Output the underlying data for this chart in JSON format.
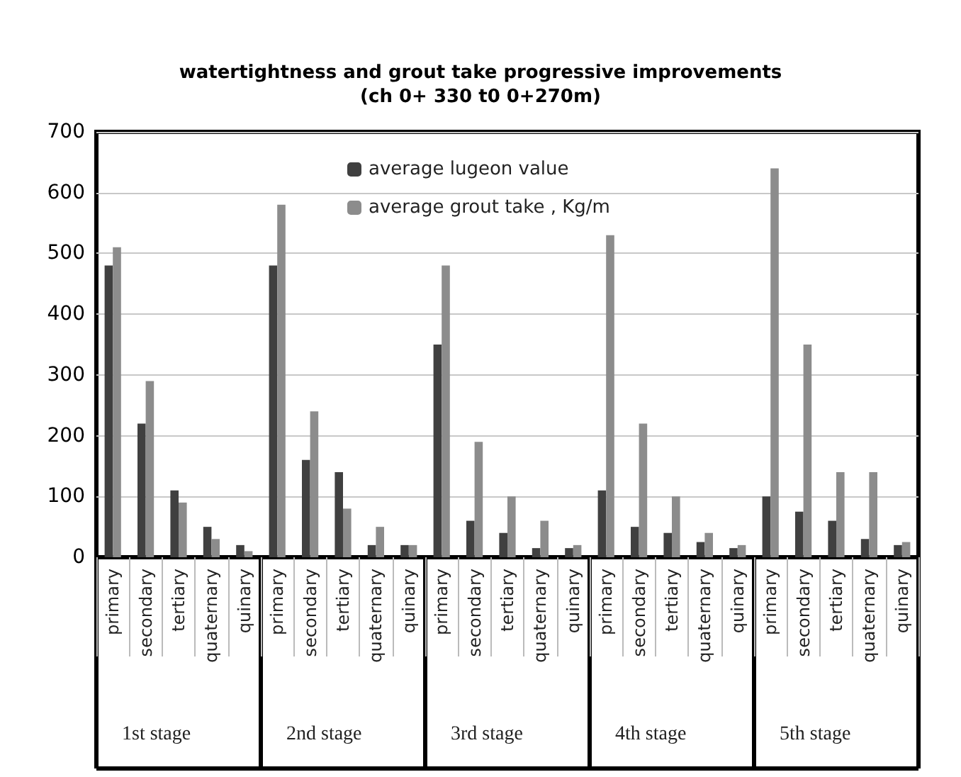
{
  "chart_data": {
    "type": "bar",
    "title": "watertightness and grout take progressive improvements",
    "subtitle": "(ch 0+ 330 t0 0+270m)",
    "categories": [
      "primary",
      "secondary",
      "tertiary",
      "quaternary",
      "quinary",
      "primary",
      "secondary",
      "tertiary",
      "quaternary",
      "quinary",
      "primary",
      "secondary",
      "tertiary",
      "quaternary",
      "quinary",
      "primary",
      "secondary",
      "tertiary",
      "quaternary",
      "quinary",
      "primary",
      "secondary",
      "tertiary",
      "quaternary",
      "quinary"
    ],
    "series": [
      {
        "name": "average lugeon value",
        "color": "#404040",
        "values": [
          480,
          220,
          110,
          50,
          20,
          480,
          160,
          140,
          20,
          20,
          350,
          60,
          40,
          15,
          15,
          110,
          50,
          40,
          25,
          15,
          100,
          75,
          60,
          30,
          20
        ]
      },
      {
        "name": "average grout take , Kg/m",
        "color": "#8c8c8c",
        "values": [
          510,
          290,
          90,
          30,
          10,
          580,
          240,
          80,
          50,
          20,
          480,
          190,
          100,
          60,
          20,
          530,
          220,
          100,
          40,
          20,
          640,
          350,
          140,
          140,
          25
        ]
      }
    ],
    "annotations": [
      "1st stage",
      "2nd stage",
      "3rd stage",
      "4th stage",
      "5th stage"
    ],
    "ylim": [
      0,
      700
    ],
    "yticks": [
      0,
      100,
      200,
      300,
      400,
      500,
      600,
      700
    ],
    "grid": "y",
    "legend": "top"
  }
}
